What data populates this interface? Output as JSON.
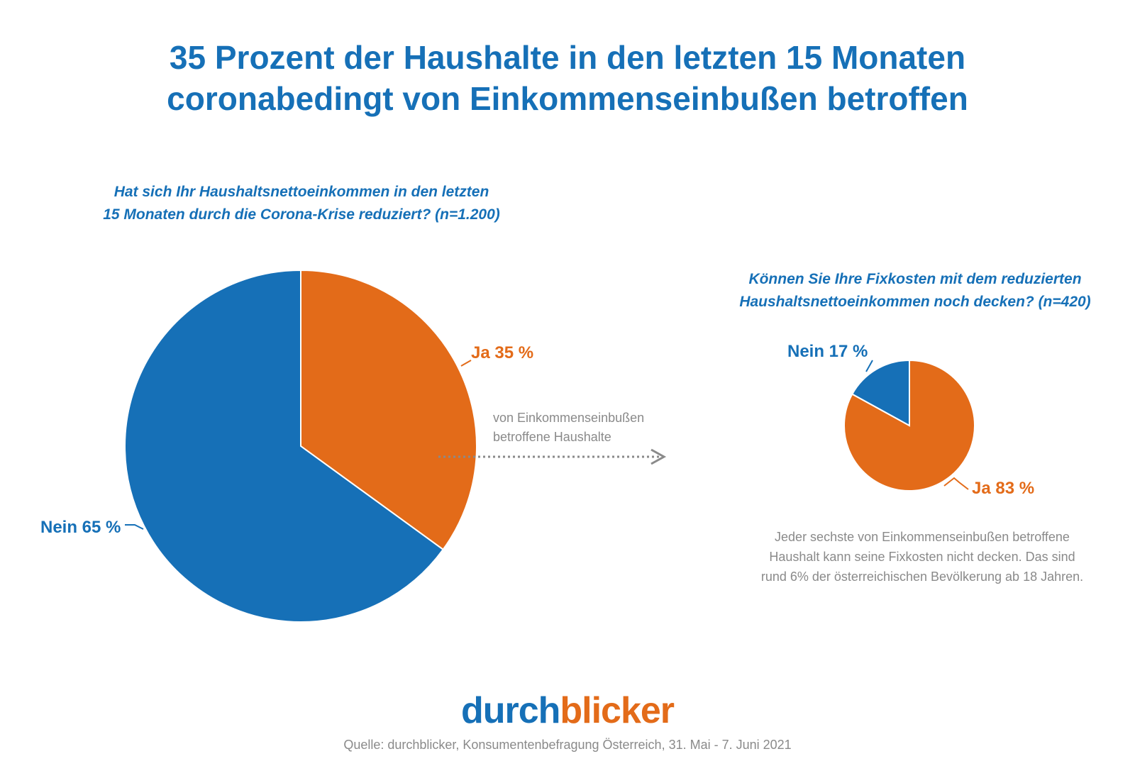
{
  "title_line1": "35 Prozent der Haushalte in den letzten 15 Monaten",
  "title_line2": "coronabedingt von Einkommenseinbußen betroffen",
  "chart_data": [
    {
      "type": "pie",
      "title_line1": "Hat sich Ihr Haushaltsnettoeinkommen in den letzten",
      "title_line2": "15 Monaten durch die Corona-Krise reduziert? (n=1.200)",
      "categories": [
        "Ja",
        "Nein"
      ],
      "values": [
        35,
        65
      ],
      "labels": [
        "Ja 35 %",
        "Nein 65 %"
      ],
      "colors": [
        "#e36b19",
        "#1670b7"
      ]
    },
    {
      "type": "pie",
      "title_line1": "Können Sie Ihre Fixkosten mit dem reduzierten",
      "title_line2": "Haushaltsnettoeinkommen noch decken? (n=420)",
      "categories": [
        "Ja",
        "Nein"
      ],
      "values": [
        83,
        17
      ],
      "labels": [
        "Ja 83 %",
        "Nein 17 %"
      ],
      "colors": [
        "#e36b19",
        "#1670b7"
      ]
    }
  ],
  "arrow_label_line1": "von Einkommenseinbußen",
  "arrow_label_line2": "betroffene Haushalte",
  "note_line1": "Jeder sechste von Einkommenseinbußen betroffene",
  "note_line2": "Haushalt kann seine Fixkosten nicht decken. Das sind",
  "note_line3": "rund 6% der österreichischen Bevölkerung ab 18 Jahren.",
  "logo_part1": "durch",
  "logo_part2": "blicker",
  "source": "Quelle: durchblicker, Konsumentenbefragung Österreich, 31. Mai - 7. Juni 2021"
}
